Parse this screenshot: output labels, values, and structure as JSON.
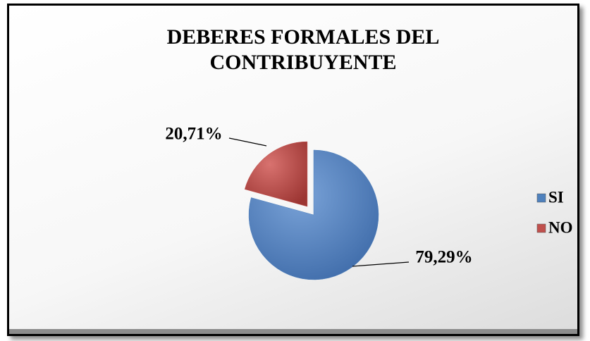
{
  "chart_data": {
    "type": "pie",
    "title": "DEBERES FORMALES DEL CONTRIBUYENTE",
    "categories": [
      "SI",
      "NO"
    ],
    "values": [
      79.29,
      20.71
    ],
    "value_labels": [
      "79,29%",
      "20,71%"
    ],
    "colors": [
      "#4f81bd",
      "#c0504d"
    ],
    "legend": "right"
  }
}
